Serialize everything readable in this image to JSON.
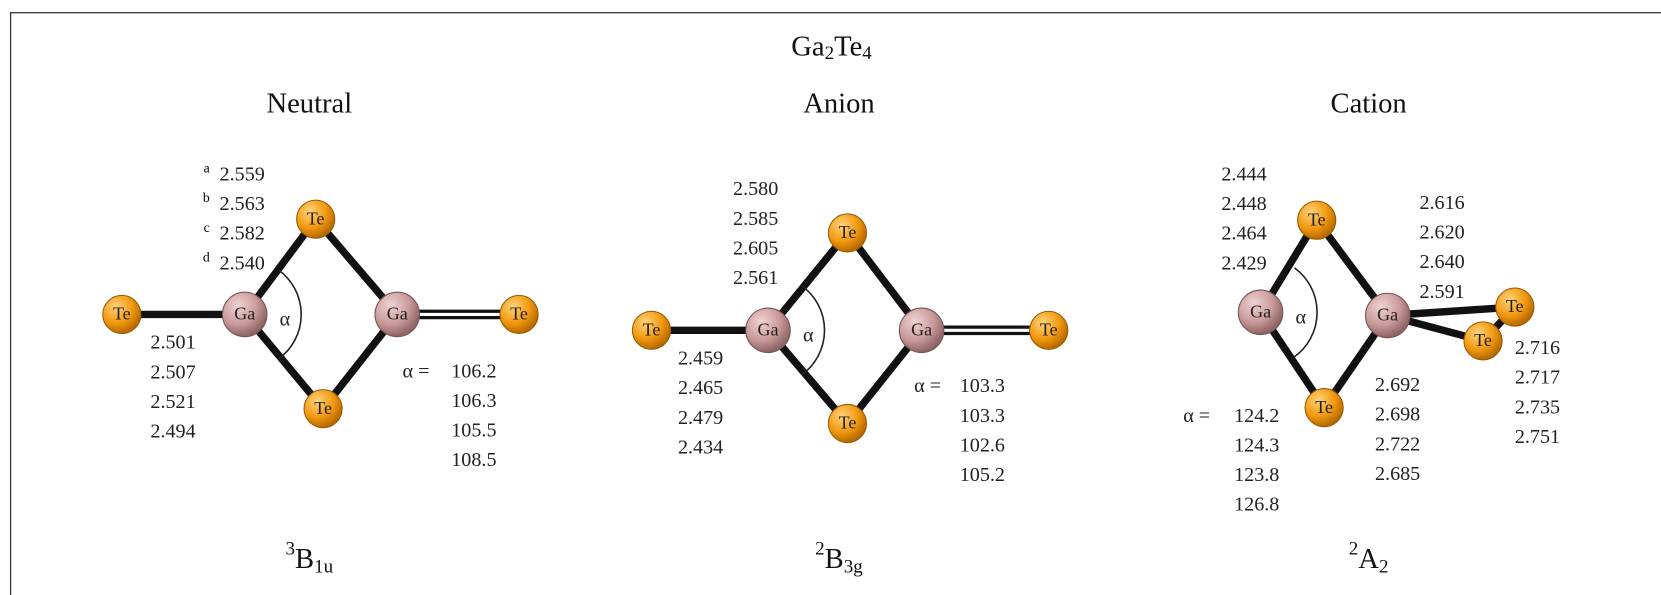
{
  "title": {
    "parts": [
      "Ga",
      "2",
      "Te",
      "4"
    ]
  },
  "panels": [
    {
      "name": "Neutral",
      "state": {
        "sup": "3",
        "main": "B",
        "sub": "1u"
      },
      "atoms": [
        "Te",
        "Ga",
        "Te",
        "Ga",
        "Te",
        "Te"
      ],
      "angle_symbol": "α",
      "alpha_prefix": "α =",
      "footnote_marks": [
        "a",
        "b",
        "c",
        "d"
      ],
      "bond_lengths": [
        [
          "2.559",
          "2.563",
          "2.582",
          "2.540"
        ],
        [
          "2.501",
          "2.507",
          "2.521",
          "2.494"
        ]
      ],
      "angles": [
        "106.2",
        "106.3",
        "105.5",
        "108.5"
      ]
    },
    {
      "name": "Anion",
      "state": {
        "sup": "2",
        "main": "B",
        "sub": "3g"
      },
      "atoms": [
        "Te",
        "Ga",
        "Te",
        "Ga",
        "Te",
        "Te"
      ],
      "angle_symbol": "α",
      "alpha_prefix": "α =",
      "bond_lengths": [
        [
          "2.580",
          "2.585",
          "2.605",
          "2.561"
        ],
        [
          "2.459",
          "2.465",
          "2.479",
          "2.434"
        ]
      ],
      "angles": [
        "103.3",
        "103.3",
        "102.6",
        "105.2"
      ]
    },
    {
      "name": "Cation",
      "state": {
        "sup": "2",
        "main": "A",
        "sub": "2"
      },
      "atoms": [
        "Ga",
        "Te",
        "Ga",
        "Te",
        "Te",
        "Te"
      ],
      "angle_symbol": "α",
      "alpha_prefix": "α =",
      "bond_lengths": [
        [
          "2.444",
          "2.448",
          "2.464",
          "2.429"
        ],
        [
          "2.616",
          "2.620",
          "2.640",
          "2.591"
        ],
        [
          "2.716",
          "2.717",
          "2.735",
          "2.751"
        ],
        [
          "2.692",
          "2.698",
          "2.722",
          "2.685"
        ]
      ],
      "angles": [
        "124.2",
        "124.3",
        "123.8",
        "126.8"
      ]
    }
  ]
}
